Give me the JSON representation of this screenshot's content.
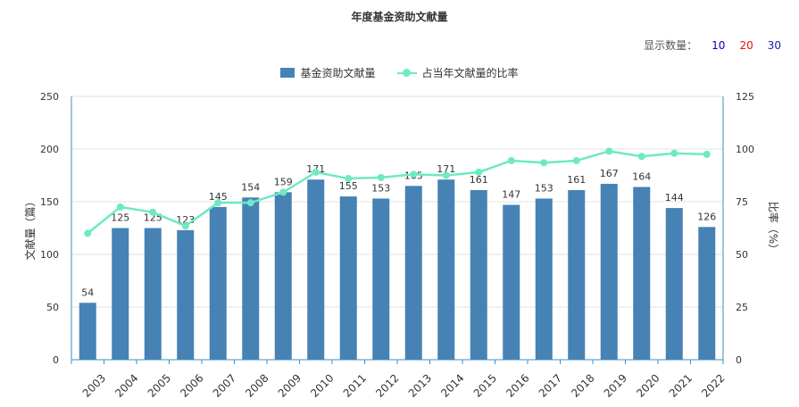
{
  "chart_title": "年度基金资助文献量",
  "count_selector": {
    "label": "显示数量：",
    "options": [
      {
        "label": "10",
        "color": "#0000cc"
      },
      {
        "label": "20",
        "color": "#e01010"
      },
      {
        "label": "30",
        "color": "#1a1aa6"
      }
    ]
  },
  "legend": {
    "bar_label": "基金资助文献量",
    "line_label": "占当年文献量的比率"
  },
  "colors": {
    "bar": "#4682b4",
    "line": "#6ee9c4",
    "axis": "#3a8fc8",
    "grid": "#e0e0e0"
  },
  "chart_data": {
    "type": "bar",
    "categories": [
      "2003",
      "2004",
      "2005",
      "2006",
      "2007",
      "2008",
      "2009",
      "2010",
      "2011",
      "2012",
      "2013",
      "2014",
      "2015",
      "2016",
      "2017",
      "2018",
      "2019",
      "2020",
      "2021",
      "2022"
    ],
    "series": [
      {
        "name": "基金资助文献量",
        "type": "bar",
        "axis": "left",
        "values": [
          54,
          125,
          125,
          123,
          145,
          154,
          159,
          171,
          155,
          153,
          165,
          171,
          161,
          147,
          153,
          161,
          167,
          164,
          144,
          126
        ]
      },
      {
        "name": "占当年文献量的比率",
        "type": "line",
        "axis": "right",
        "values": [
          60,
          72.5,
          70,
          63.5,
          74.5,
          74.5,
          79.5,
          89,
          86,
          86.5,
          88,
          87.5,
          89,
          94.5,
          93.5,
          94.5,
          99,
          96.5,
          98,
          97.5
        ]
      }
    ],
    "ylabel": "文献量（篇）",
    "ylabel_right": "比率（%）",
    "ylim": [
      0,
      250
    ],
    "ylim_right": [
      0,
      125
    ],
    "yticks": [
      0,
      50,
      100,
      150,
      200,
      250
    ],
    "yticks_right": [
      0,
      25,
      50,
      75,
      100,
      125
    ],
    "grid": true,
    "legend_position": "top"
  }
}
